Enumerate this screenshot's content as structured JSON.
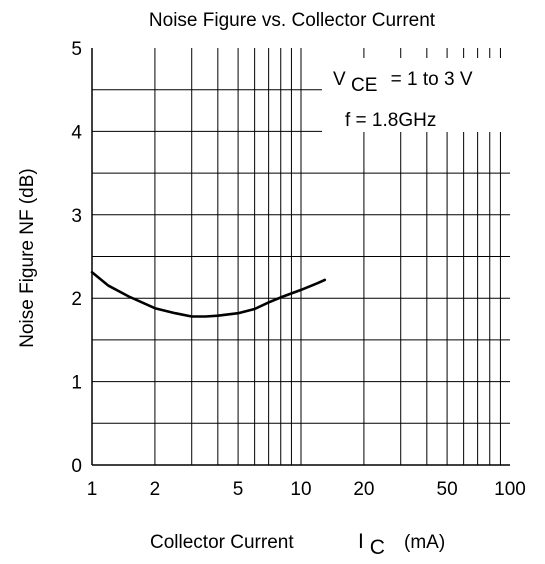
{
  "chart_data": {
    "type": "line",
    "title": "Noise Figure vs. Collector Current",
    "xlabel": {
      "main": "Collector Current",
      "symbol": "I",
      "subscript": "C",
      "unit": "(mA)"
    },
    "ylabel": "Noise Figure NF (dB)",
    "x_scale": "log",
    "xlim": [
      1,
      100
    ],
    "ylim": [
      0,
      5
    ],
    "x_ticks": [
      1,
      2,
      5,
      10,
      20,
      50,
      100
    ],
    "x_tick_labels": [
      "1",
      "2",
      "5",
      "10",
      "20",
      "50",
      "100"
    ],
    "y_ticks": [
      0,
      1,
      2,
      3,
      4,
      5
    ],
    "y_tick_labels": [
      "0",
      "1",
      "2",
      "3",
      "4",
      "5"
    ],
    "grid": true,
    "annotation": {
      "line1_main": "V",
      "line1_sub": "CE",
      "line1_rest": "= 1 to 3 V",
      "line2": "f = 1.8GHz"
    },
    "series": [
      {
        "x": [
          1.0,
          1.2,
          1.5,
          2.0,
          2.5,
          3.0,
          3.5,
          4.0,
          5.0,
          6.0,
          7.0,
          8.0,
          10.0,
          12.0,
          13.0
        ],
        "y": [
          2.31,
          2.15,
          2.02,
          1.88,
          1.82,
          1.78,
          1.78,
          1.79,
          1.82,
          1.87,
          1.95,
          2.01,
          2.1,
          2.18,
          2.22
        ]
      }
    ]
  }
}
